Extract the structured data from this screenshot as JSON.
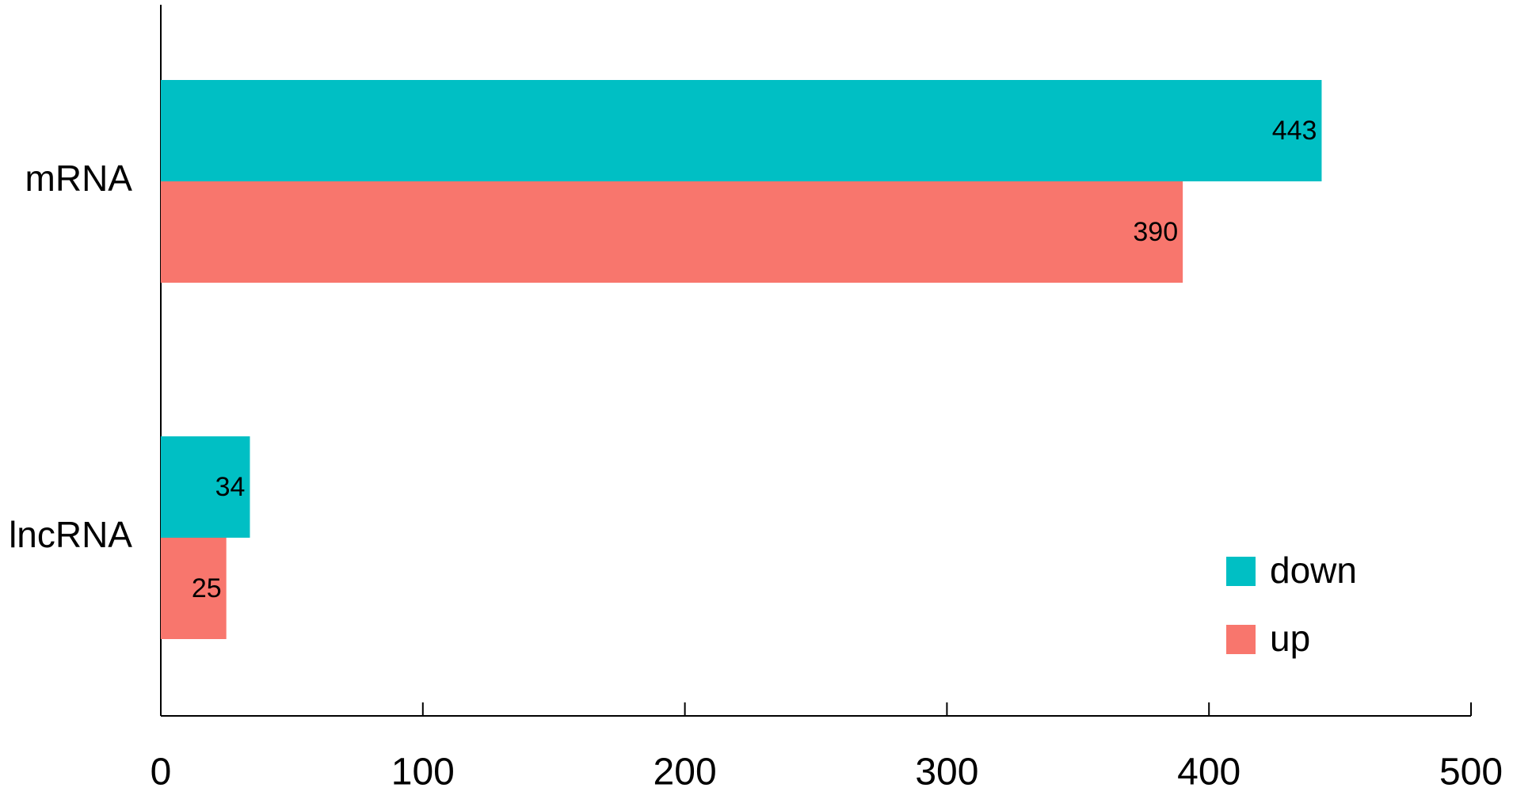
{
  "chart_data": {
    "type": "hbar",
    "categories": [
      "mRNA",
      "lncRNA"
    ],
    "series": [
      {
        "name": "down",
        "color": "#00BFC4",
        "values": [
          443,
          34
        ]
      },
      {
        "name": "up",
        "color": "#F8766D",
        "values": [
          390,
          25
        ]
      }
    ],
    "xlim": [
      0,
      500
    ],
    "xticks": [
      0,
      100,
      200,
      300,
      400,
      500
    ],
    "legend": "lower right"
  }
}
